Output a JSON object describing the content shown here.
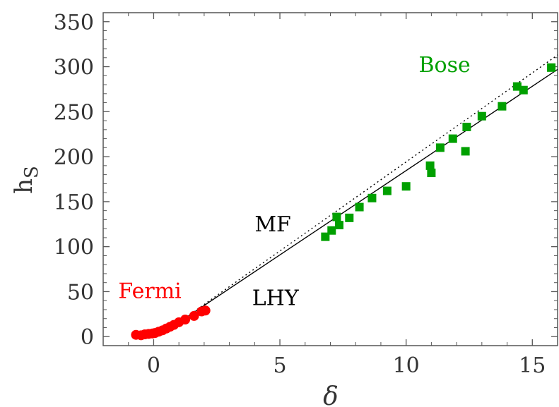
{
  "chart_data": {
    "type": "scatter",
    "xlabel": "δ",
    "ylabel": "h",
    "ylabel_sub": "S",
    "xlim": [
      -2.0,
      16.0
    ],
    "ylim": [
      -10,
      360
    ],
    "xticks": [
      0,
      5,
      10,
      15
    ],
    "yticks": [
      0,
      50,
      100,
      150,
      200,
      250,
      300,
      350
    ],
    "grid": false,
    "series": [
      {
        "name": "Fermi",
        "marker": "circle",
        "color": "#ff0000",
        "x": [
          -0.7,
          -0.5,
          -0.35,
          -0.2,
          -0.05,
          0.05,
          0.2,
          0.35,
          0.5,
          0.65,
          0.8,
          1.0,
          1.25,
          1.6,
          1.9,
          2.05
        ],
        "y": [
          2,
          1.5,
          2.5,
          3,
          3.5,
          4,
          5.5,
          7,
          9,
          11,
          13,
          16,
          19,
          23,
          28,
          29
        ]
      },
      {
        "name": "Bose",
        "marker": "square",
        "color": "#00a000",
        "x": [
          6.8,
          7.05,
          7.25,
          7.35,
          7.75,
          8.15,
          8.65,
          9.25,
          10.0,
          10.95,
          11.0,
          11.35,
          11.85,
          12.35,
          12.4,
          13.0,
          13.8,
          14.4,
          14.65,
          15.75
        ],
        "y": [
          111,
          118,
          133,
          124,
          132,
          144,
          154,
          162,
          167,
          190,
          182,
          210,
          220,
          206,
          233,
          245,
          256,
          278,
          274,
          299
        ]
      },
      {
        "name": "MF",
        "style": "dotted",
        "color": "#000000",
        "x": [
          0.9,
          16.0
        ],
        "y": [
          14,
          313
        ]
      },
      {
        "name": "LHY",
        "style": "solid",
        "color": "#000000",
        "x": [
          0.9,
          16.0
        ],
        "y": [
          14,
          297
        ]
      }
    ],
    "annotations": [
      {
        "text": "Fermi",
        "x": -1.4,
        "y": 43,
        "color": "#ff0000"
      },
      {
        "text": "LHY",
        "x": 3.9,
        "y": 35,
        "color": "#000000"
      },
      {
        "text": "MF",
        "x": 4.0,
        "y": 117,
        "color": "#000000"
      },
      {
        "text": "Bose",
        "x": 10.5,
        "y": 294,
        "color": "#00a000"
      }
    ]
  }
}
